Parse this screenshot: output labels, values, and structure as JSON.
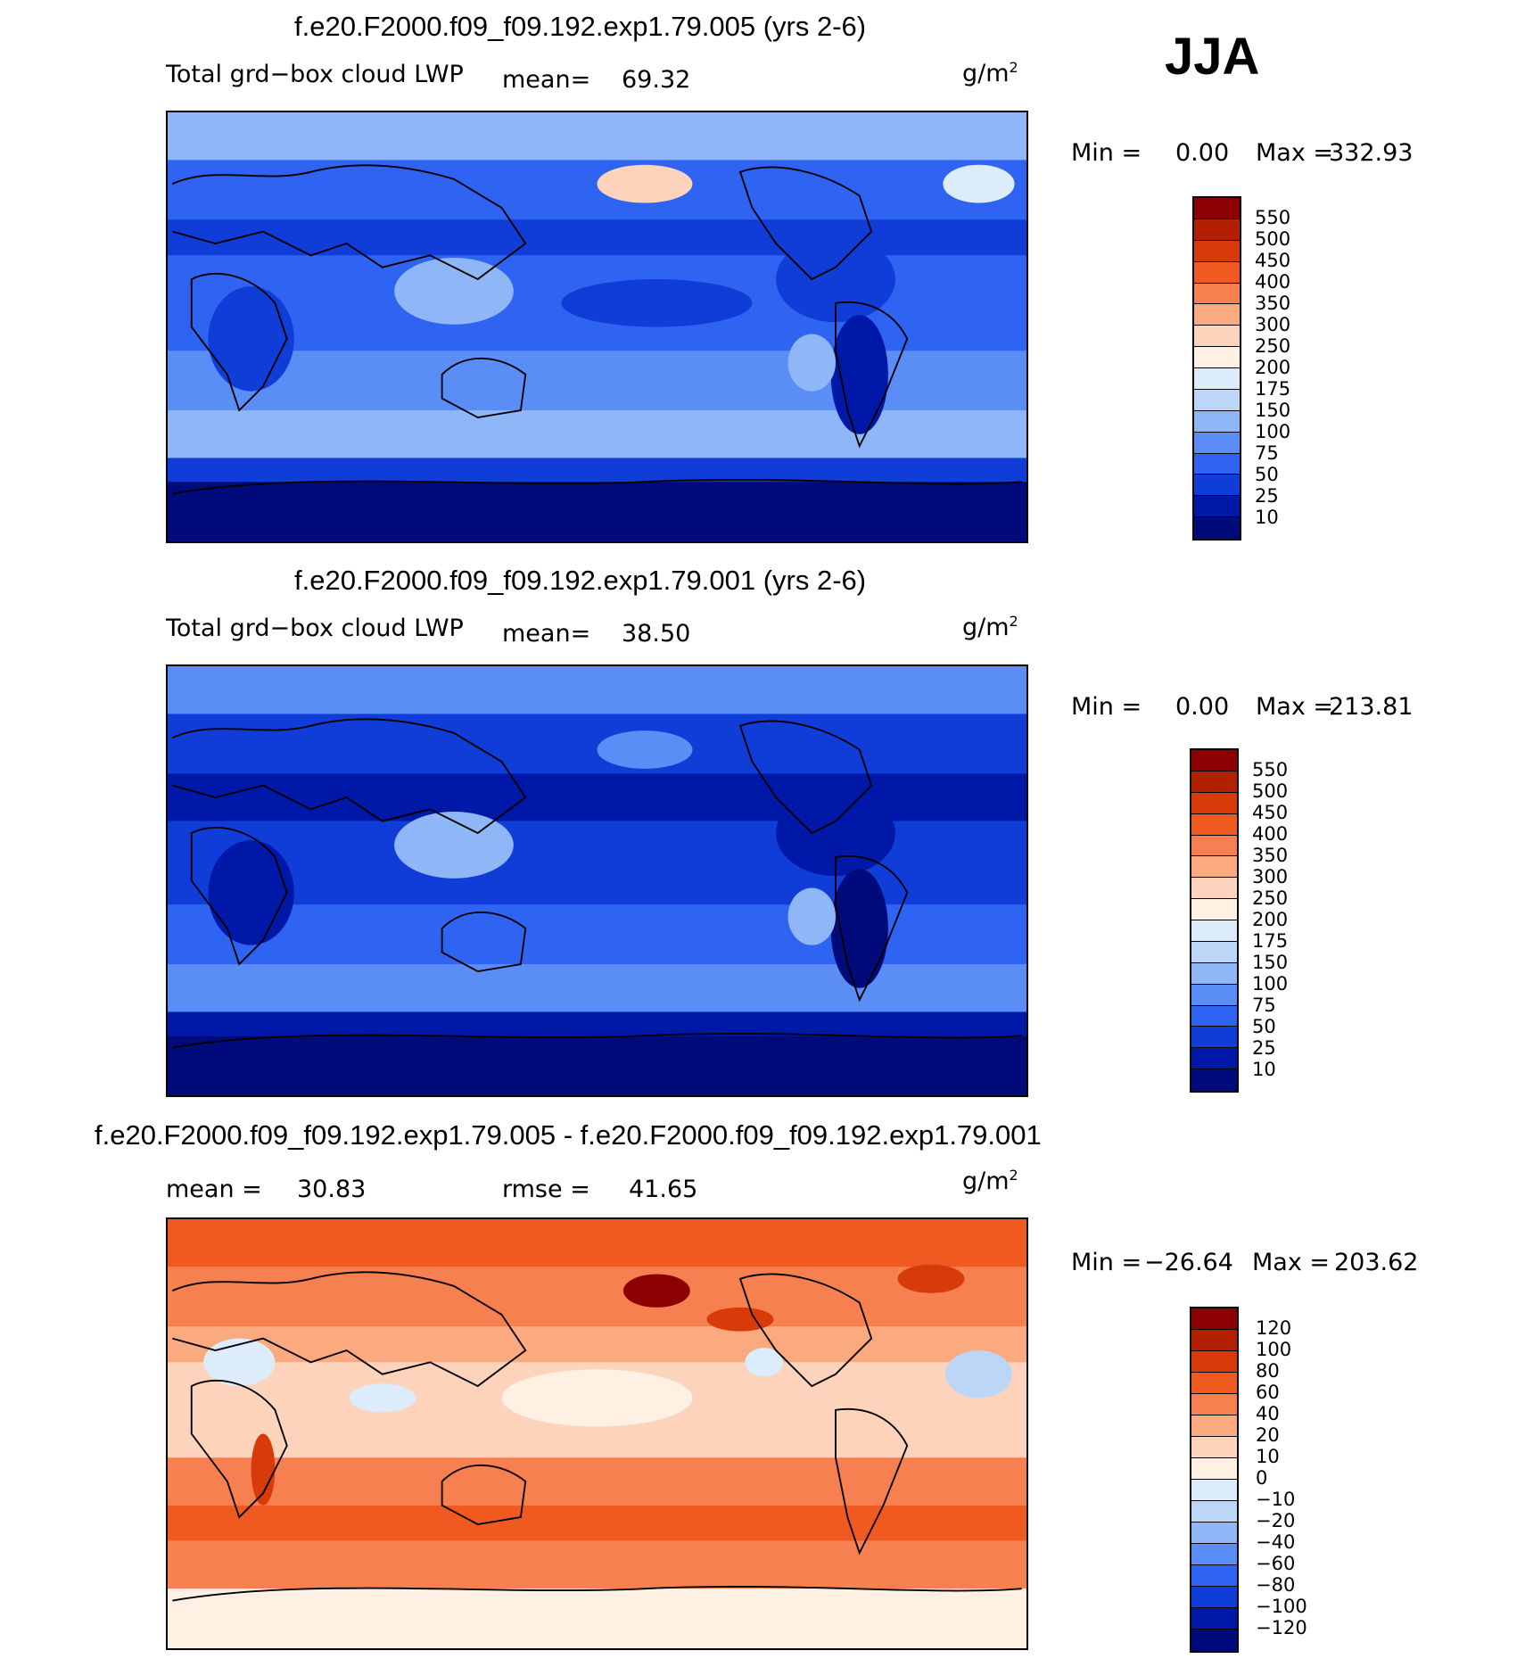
{
  "season": "JJA",
  "panels": [
    {
      "id": "p1",
      "title": "f.e20.F2000.f09_f09.192.exp1.79.005 (yrs 2-6)",
      "variable": "Total grd−box cloud LWP",
      "mean_label": "mean=",
      "mean": "69.32",
      "units": "g/m",
      "units_exp": "2",
      "min_label": "Min =",
      "min": "0.00",
      "max_label": "Max =",
      "max": "332.93",
      "levels": [
        "550",
        "500",
        "450",
        "400",
        "350",
        "300",
        "250",
        "200",
        "175",
        "150",
        "100",
        "75",
        "50",
        "25",
        "10"
      ],
      "colors": [
        "#8b0000",
        "#b22000",
        "#d83a0a",
        "#f05a20",
        "#f78050",
        "#fbaa80",
        "#fdd4bb",
        "#fff0e4",
        "#dcecfb",
        "#bcd6f8",
        "#8fb6f6",
        "#5b8df6",
        "#2f63f2",
        "#103cd8",
        "#0018a8",
        "#000a7a"
      ]
    },
    {
      "id": "p2",
      "title": "f.e20.F2000.f09_f09.192.exp1.79.001 (yrs 2-6)",
      "variable": "Total grd−box cloud LWP",
      "mean_label": "mean=",
      "mean": "38.50",
      "units": "g/m",
      "units_exp": "2",
      "min_label": "Min =",
      "min": "0.00",
      "max_label": "Max =",
      "max": "213.81",
      "levels": [
        "550",
        "500",
        "450",
        "400",
        "350",
        "300",
        "250",
        "200",
        "175",
        "150",
        "100",
        "75",
        "50",
        "25",
        "10"
      ],
      "colors": [
        "#8b0000",
        "#b22000",
        "#d83a0a",
        "#f05a20",
        "#f78050",
        "#fbaa80",
        "#fdd4bb",
        "#fff0e4",
        "#dcecfb",
        "#bcd6f8",
        "#8fb6f6",
        "#5b8df6",
        "#2f63f2",
        "#103cd8",
        "#0018a8",
        "#000a7a"
      ]
    },
    {
      "id": "p3",
      "title": "f.e20.F2000.f09_f09.192.exp1.79.005 - f.e20.F2000.f09_f09.192.exp1.79.001",
      "mean_label": "mean =",
      "mean": "30.83",
      "rmse_label": "rmse =",
      "rmse": "41.65",
      "units": "g/m",
      "units_exp": "2",
      "min_label": "Min =",
      "min": "−26.64",
      "max_label": "Max =",
      "max": "203.62",
      "levels": [
        "120",
        "100",
        "80",
        "60",
        "40",
        "20",
        "10",
        "0",
        "−10",
        "−20",
        "−40",
        "−60",
        "−80",
        "−100",
        "−120"
      ],
      "colors": [
        "#8b0000",
        "#b22000",
        "#d83a0a",
        "#f05a20",
        "#f78050",
        "#fbaa80",
        "#fdd4bb",
        "#fff0e4",
        "#dcecfb",
        "#bcd6f8",
        "#8fb6f6",
        "#5b8df6",
        "#2f63f2",
        "#103cd8",
        "#0018a8",
        "#000a7a"
      ]
    }
  ]
}
